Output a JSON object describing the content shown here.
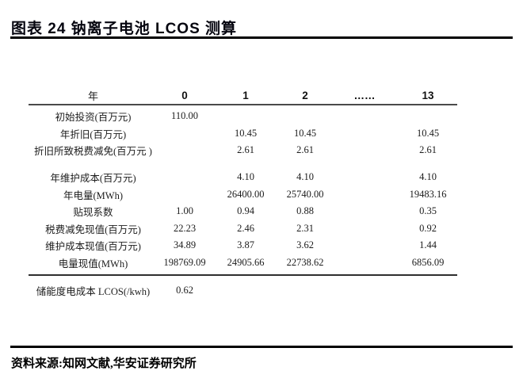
{
  "title": "图表 24 钠离子电池 LCOS 测算",
  "table": {
    "header": [
      "年",
      "0",
      "1",
      "2",
      "……",
      "13"
    ],
    "rows": [
      {
        "label": "初始投资(百万元)",
        "values": [
          "110.00",
          "",
          "",
          "",
          ""
        ]
      },
      {
        "label": "年折旧(百万元)",
        "values": [
          "",
          "10.45",
          "10.45",
          "",
          "10.45"
        ]
      },
      {
        "label": "折旧所致税费减免(百万元 )",
        "values": [
          "",
          "2.61",
          "2.61",
          "",
          "2.61"
        ],
        "spacer_after": true
      },
      {
        "label": "年维护成本(百万元)",
        "values": [
          "",
          "4.10",
          "4.10",
          "",
          "4.10"
        ]
      },
      {
        "label": "年电量(MWh)",
        "values": [
          "",
          "26400.00",
          "25740.00",
          "",
          "19483.16"
        ]
      },
      {
        "label": "贴现系数",
        "values": [
          "1.00",
          "0.94",
          "0.88",
          "",
          "0.35"
        ]
      },
      {
        "label": "税费减免现值(百万元)",
        "values": [
          "22.23",
          "2.46",
          "2.31",
          "",
          "0.92"
        ]
      },
      {
        "label": "维护成本现值(百万元)",
        "values": [
          "34.89",
          "3.87",
          "3.62",
          "",
          "1.44"
        ]
      },
      {
        "label": "电量现值(MWh)",
        "values": [
          "198769.09",
          "24905.66",
          "22738.62",
          "",
          "6856.09"
        ]
      }
    ],
    "summary_row": {
      "label": "储能度电成本 LCOS(/kwh)",
      "values": [
        "0.62",
        "",
        "",
        "",
        ""
      ]
    }
  },
  "footer": {
    "source_label": "资料来源:知网文献,华安证券研究所"
  },
  "colors": {
    "title_text": "#05050f",
    "heavy_rule": "#000000",
    "header_rule": "#4a4a4a",
    "thick_rule": "#2e2e2e",
    "body_text": "#1c1c1c"
  }
}
